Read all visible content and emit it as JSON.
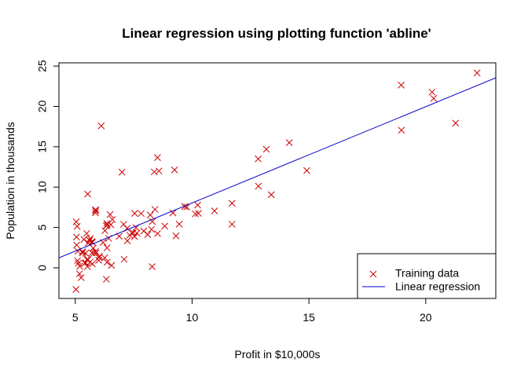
{
  "chart_data": {
    "type": "scatter",
    "title": "Linear regression using plotting function 'abline'",
    "xlabel": "Profit in $10,000s",
    "ylabel": "Population in thousands",
    "xlim": [
      4.3,
      23.0
    ],
    "ylim": [
      -3.8,
      25.4
    ],
    "xticks": [
      5,
      10,
      15,
      20
    ],
    "yticks": [
      0,
      5,
      10,
      15,
      20,
      25
    ],
    "legend_position": "bottom-right",
    "series": [
      {
        "name": "Training data",
        "kind": "points",
        "marker": "x",
        "color": "#cc0000",
        "points": [
          [
            6.11,
            17.59
          ],
          [
            5.53,
            9.13
          ],
          [
            8.52,
            13.66
          ],
          [
            7.0,
            11.85
          ],
          [
            5.86,
            6.82
          ],
          [
            8.38,
            11.89
          ],
          [
            7.48,
            4.35
          ],
          [
            8.58,
            12.0
          ],
          [
            6.49,
            6.6
          ],
          [
            5.05,
            3.82
          ],
          [
            5.71,
            3.25
          ],
          [
            14.16,
            15.51
          ],
          [
            5.73,
            3.16
          ],
          [
            8.41,
            7.23
          ],
          [
            5.64,
            0.72
          ],
          [
            5.37,
            3.51
          ],
          [
            6.37,
            5.3
          ],
          [
            5.13,
            0.56
          ],
          [
            6.43,
            3.65
          ],
          [
            7.07,
            5.39
          ],
          [
            6.19,
            3.14
          ],
          [
            20.27,
            21.77
          ],
          [
            5.49,
            4.26
          ],
          [
            6.33,
            5.19
          ],
          [
            5.56,
            3.08
          ],
          [
            18.95,
            22.64
          ],
          [
            12.83,
            13.5
          ],
          [
            10.96,
            7.05
          ],
          [
            13.18,
            14.69
          ],
          [
            22.2,
            24.15
          ],
          [
            5.25,
            -1.22
          ],
          [
            6.59,
            5.99
          ],
          [
            9.25,
            12.13
          ],
          [
            5.89,
            1.85
          ],
          [
            8.21,
            6.54
          ],
          [
            7.93,
            4.56
          ],
          [
            8.1,
            4.12
          ],
          [
            5.61,
            3.39
          ],
          [
            12.84,
            10.12
          ],
          [
            6.35,
            5.5
          ],
          [
            5.41,
            0.56
          ],
          [
            6.88,
            3.91
          ],
          [
            11.71,
            5.39
          ],
          [
            5.77,
            2.44
          ],
          [
            7.82,
            6.73
          ],
          [
            7.09,
            1.05
          ],
          [
            5.08,
            5.13
          ],
          [
            5.8,
            1.84
          ],
          [
            11.71,
            8.0
          ],
          [
            5.54,
            1.02
          ],
          [
            7.54,
            6.75
          ],
          [
            5.31,
            1.84
          ],
          [
            7.42,
            4.29
          ],
          [
            7.6,
            4.99
          ],
          [
            6.03,
            1.42
          ],
          [
            6.33,
            -1.42
          ],
          [
            6.36,
            2.48
          ],
          [
            6.27,
            4.6
          ],
          [
            5.64,
            3.62
          ],
          [
            9.31,
            3.96
          ],
          [
            9.45,
            5.41
          ],
          [
            8.83,
            5.17
          ],
          [
            5.18,
            -0.74
          ],
          [
            21.28,
            17.93
          ],
          [
            14.91,
            12.05
          ],
          [
            18.96,
            17.05
          ],
          [
            7.22,
            4.89
          ],
          [
            8.3,
            5.74
          ],
          [
            10.24,
            7.78
          ],
          [
            5.5,
            1.02
          ],
          [
            20.34,
            20.99
          ],
          [
            10.14,
            6.68
          ],
          [
            7.33,
            4.03
          ],
          [
            6.01,
            1.28
          ],
          [
            7.23,
            3.34
          ],
          [
            5.03,
            -2.68
          ],
          [
            6.55,
            0.3
          ],
          [
            7.54,
            3.88
          ],
          [
            5.04,
            5.7
          ],
          [
            10.27,
            6.75
          ],
          [
            5.11,
            2.06
          ],
          [
            5.73,
            0.48
          ],
          [
            5.19,
            0.2
          ],
          [
            6.36,
            0.68
          ],
          [
            9.77,
            7.54
          ],
          [
            6.52,
            5.34
          ],
          [
            8.52,
            4.24
          ],
          [
            9.18,
            6.8
          ],
          [
            6.0,
            0.93
          ],
          [
            5.52,
            0.15
          ],
          [
            5.06,
            2.82
          ],
          [
            5.71,
            1.85
          ],
          [
            7.64,
            4.29
          ],
          [
            5.87,
            7.2
          ],
          [
            5.31,
            1.99
          ],
          [
            8.29,
            0.14
          ],
          [
            13.39,
            9.06
          ],
          [
            5.44,
            0.62
          ],
          [
            5.87,
            2.01
          ],
          [
            5.1,
            0.89
          ],
          [
            6.26,
            1.24
          ],
          [
            5.87,
            7.05
          ],
          [
            9.68,
            7.59
          ],
          [
            8.26,
            4.76
          ],
          [
            5.44,
            1.8
          ]
        ]
      },
      {
        "name": "Linear regression",
        "kind": "line",
        "color": "#0000cc",
        "intercept": -3.8958,
        "slope": 1.193
      }
    ]
  }
}
